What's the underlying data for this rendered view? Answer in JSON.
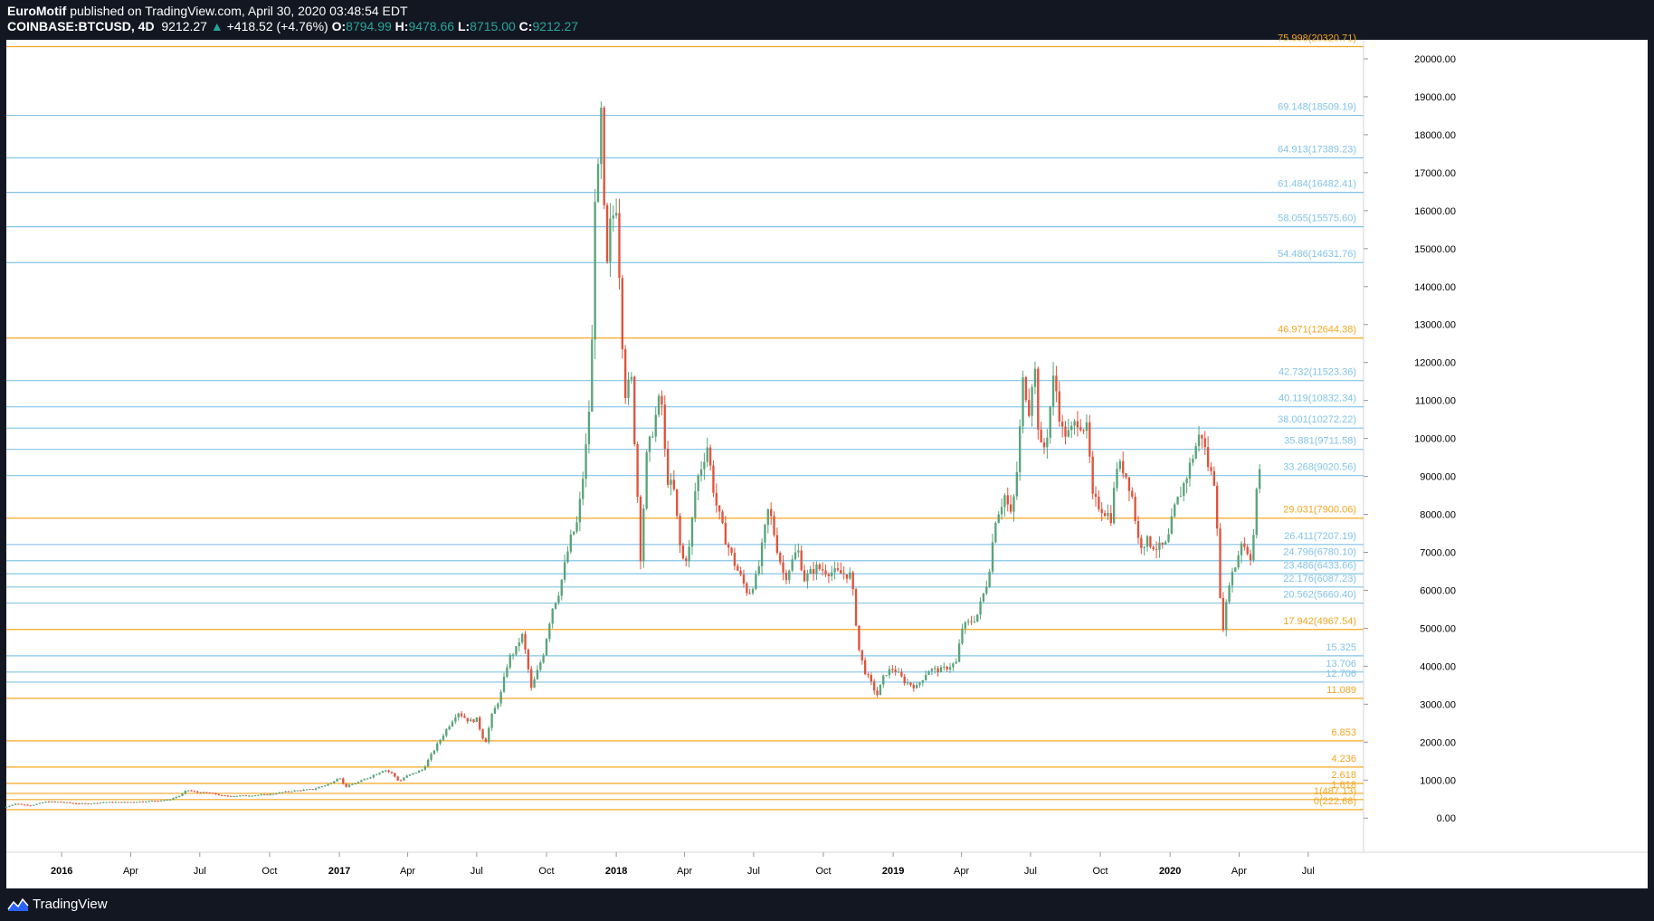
{
  "header": {
    "author": "EuroMotif",
    "published": "published on TradingView.com, April 30, 2020 03:48:54 EDT",
    "symbol": "COINBASE:BTCUSD, 4D",
    "last": "9212.27",
    "change": "+418.52 (+4.76%)",
    "o_label": "O:",
    "o_value": "8794.99",
    "h_label": "H:",
    "h_value": "9478.66",
    "l_label": "L:",
    "l_value": "8715.00",
    "c_label": "C:",
    "c_value": "9212.27"
  },
  "footer": {
    "brand": "TradingView"
  },
  "colors": {
    "background": "#131722",
    "up": "#26a69a",
    "candle_up": "#5aa37a",
    "candle_down": "#e0533c",
    "fib_orange": "#f5a623",
    "fib_blue": "#82c4e8",
    "axis_text": "#000000"
  },
  "chart_data": {
    "type": "candlestick",
    "title": "",
    "ylim": [
      -900,
      20500
    ],
    "y_ticks": [
      "0.00",
      "1000.00",
      "2000.00",
      "3000.00",
      "4000.00",
      "5000.00",
      "6000.00",
      "7000.00",
      "8000.00",
      "9000.00",
      "10000.00",
      "11000.00",
      "12000.00",
      "13000.00",
      "14000.00",
      "15000.00",
      "16000.00",
      "17000.00",
      "18000.00",
      "19000.00",
      "20000.00"
    ],
    "x_ticks": [
      {
        "label": "2016",
        "date": "2016-01-01",
        "bold": true
      },
      {
        "label": "Apr",
        "date": "2016-04-01",
        "bold": false
      },
      {
        "label": "Jul",
        "date": "2016-07-01",
        "bold": false
      },
      {
        "label": "Oct",
        "date": "2016-10-01",
        "bold": false
      },
      {
        "label": "2017",
        "date": "2017-01-01",
        "bold": true
      },
      {
        "label": "Apr",
        "date": "2017-04-01",
        "bold": false
      },
      {
        "label": "Jul",
        "date": "2017-07-01",
        "bold": false
      },
      {
        "label": "Oct",
        "date": "2017-10-01",
        "bold": false
      },
      {
        "label": "2018",
        "date": "2018-01-01",
        "bold": true
      },
      {
        "label": "Apr",
        "date": "2018-04-01",
        "bold": false
      },
      {
        "label": "Jul",
        "date": "2018-07-01",
        "bold": false
      },
      {
        "label": "Oct",
        "date": "2018-10-01",
        "bold": false
      },
      {
        "label": "2019",
        "date": "2019-01-01",
        "bold": true
      },
      {
        "label": "Apr",
        "date": "2019-04-01",
        "bold": false
      },
      {
        "label": "Jul",
        "date": "2019-07-01",
        "bold": false
      },
      {
        "label": "Oct",
        "date": "2019-10-01",
        "bold": false
      },
      {
        "label": "2020",
        "date": "2020-01-01",
        "bold": true
      },
      {
        "label": "Apr",
        "date": "2020-04-01",
        "bold": false
      },
      {
        "label": "Jul",
        "date": "2020-07-01",
        "bold": false
      }
    ],
    "xlim": [
      "2015-10-20",
      "2020-09-12"
    ],
    "fib_levels": [
      {
        "label": "75.998(20320.71)",
        "value": 20320.71,
        "color": "orange"
      },
      {
        "label": "69.148(18509.19)",
        "value": 18509.19,
        "color": "blue"
      },
      {
        "label": "64.913(17389.23)",
        "value": 17389.23,
        "color": "blue"
      },
      {
        "label": "61.484(16482.41)",
        "value": 16482.41,
        "color": "blue"
      },
      {
        "label": "58.055(15575.60)",
        "value": 15575.6,
        "color": "blue"
      },
      {
        "label": "54.486(14631.76)",
        "value": 14631.76,
        "color": "blue"
      },
      {
        "label": "46.971(12644.38)",
        "value": 12644.38,
        "color": "orange"
      },
      {
        "label": "42.732(11523.36)",
        "value": 11523.36,
        "color": "blue"
      },
      {
        "label": "40.119(10832.34)",
        "value": 10832.34,
        "color": "blue"
      },
      {
        "label": "38.001(10272.22)",
        "value": 10272.22,
        "color": "blue"
      },
      {
        "label": "35.881(9711.58)",
        "value": 9711.58,
        "color": "blue"
      },
      {
        "label": "33.268(9020.56)",
        "value": 9020.56,
        "color": "blue"
      },
      {
        "label": "29.031(7900.06)",
        "value": 7900.06,
        "color": "orange"
      },
      {
        "label": "26.411(7207.19)",
        "value": 7207.19,
        "color": "blue"
      },
      {
        "label": "24.796(6780.10)",
        "value": 6780.1,
        "color": "blue"
      },
      {
        "label": "23.486(6433.66)",
        "value": 6433.66,
        "color": "blue"
      },
      {
        "label": "22.176(6087.23)",
        "value": 6087.23,
        "color": "blue"
      },
      {
        "label": "20.562(5660.40)",
        "value": 5660.4,
        "color": "blue"
      },
      {
        "label": "17.942(4967.54)",
        "value": 4967.54,
        "color": "orange"
      },
      {
        "label": "15.325",
        "value": 4275,
        "color": "blue"
      },
      {
        "label": "13.706",
        "value": 3847,
        "color": "blue"
      },
      {
        "label": "12.706",
        "value": 3582,
        "color": "blue"
      },
      {
        "label": "11.089",
        "value": 3154,
        "color": "orange"
      },
      {
        "label": "6.853",
        "value": 2034,
        "color": "orange"
      },
      {
        "label": "4.236",
        "value": 1343,
        "color": "orange"
      },
      {
        "label": "2.618",
        "value": 915,
        "color": "orange"
      },
      {
        "label": "1.618",
        "value": 650,
        "color": "orange"
      },
      {
        "label": "1(487.13)",
        "value": 487.13,
        "color": "orange"
      },
      {
        "label": "0(222.68)",
        "value": 222.68,
        "color": "orange"
      }
    ],
    "price_series": [
      [
        "2015-10-20",
        270
      ],
      [
        "2015-11-05",
        380
      ],
      [
        "2015-11-25",
        330
      ],
      [
        "2015-12-15",
        430
      ],
      [
        "2016-01-01",
        430
      ],
      [
        "2016-01-20",
        390
      ],
      [
        "2016-02-10",
        380
      ],
      [
        "2016-03-01",
        420
      ],
      [
        "2016-04-01",
        420
      ],
      [
        "2016-05-01",
        450
      ],
      [
        "2016-05-25",
        480
      ],
      [
        "2016-06-10",
        600
      ],
      [
        "2016-06-18",
        740
      ],
      [
        "2016-07-01",
        680
      ],
      [
        "2016-07-20",
        660
      ],
      [
        "2016-08-05",
        580
      ],
      [
        "2016-09-01",
        590
      ],
      [
        "2016-10-01",
        615
      ],
      [
        "2016-11-01",
        710
      ],
      [
        "2016-12-01",
        760
      ],
      [
        "2016-12-25",
        920
      ],
      [
        "2017-01-05",
        1100
      ],
      [
        "2017-01-12",
        820
      ],
      [
        "2017-02-01",
        960
      ],
      [
        "2017-02-25",
        1190
      ],
      [
        "2017-03-05",
        1280
      ],
      [
        "2017-03-15",
        1180
      ],
      [
        "2017-03-25",
        960
      ],
      [
        "2017-04-01",
        1080
      ],
      [
        "2017-04-25",
        1280
      ],
      [
        "2017-05-10",
        1800
      ],
      [
        "2017-05-25",
        2300
      ],
      [
        "2017-06-10",
        2800
      ],
      [
        "2017-06-25",
        2550
      ],
      [
        "2017-07-05",
        2600
      ],
      [
        "2017-07-16",
        1950
      ],
      [
        "2017-07-25",
        2700
      ],
      [
        "2017-08-05",
        3200
      ],
      [
        "2017-08-16",
        4200
      ],
      [
        "2017-08-28",
        4500
      ],
      [
        "2017-09-02",
        4900
      ],
      [
        "2017-09-08",
        4300
      ],
      [
        "2017-09-15",
        3400
      ],
      [
        "2017-09-22",
        3800
      ],
      [
        "2017-10-01",
        4350
      ],
      [
        "2017-10-12",
        5500
      ],
      [
        "2017-10-22",
        6000
      ],
      [
        "2017-11-05",
        7300
      ],
      [
        "2017-11-15",
        7800
      ],
      [
        "2017-11-25",
        9500
      ],
      [
        "2017-12-03",
        11500
      ],
      [
        "2017-12-08",
        16500
      ],
      [
        "2017-12-13",
        17000
      ],
      [
        "2017-12-17",
        19000
      ],
      [
        "2017-12-22",
        13800
      ],
      [
        "2017-12-27",
        15500
      ],
      [
        "2018-01-05",
        16200
      ],
      [
        "2018-01-10",
        14000
      ],
      [
        "2018-01-16",
        11200
      ],
      [
        "2018-01-25",
        11500
      ],
      [
        "2018-02-02",
        8500
      ],
      [
        "2018-02-06",
        6900
      ],
      [
        "2018-02-14",
        9500
      ],
      [
        "2018-02-25",
        10500
      ],
      [
        "2018-03-05",
        11200
      ],
      [
        "2018-03-12",
        9000
      ],
      [
        "2018-03-22",
        8600
      ],
      [
        "2018-04-01",
        6800
      ],
      [
        "2018-04-10",
        6900
      ],
      [
        "2018-04-20",
        8800
      ],
      [
        "2018-05-05",
        9800
      ],
      [
        "2018-05-15",
        8400
      ],
      [
        "2018-05-28",
        7400
      ],
      [
        "2018-06-10",
        6700
      ],
      [
        "2018-06-28",
        5900
      ],
      [
        "2018-07-10",
        6400
      ],
      [
        "2018-07-25",
        8200
      ],
      [
        "2018-08-05",
        7100
      ],
      [
        "2018-08-15",
        6300
      ],
      [
        "2018-09-01",
        7100
      ],
      [
        "2018-09-10",
        6300
      ],
      [
        "2018-09-25",
        6600
      ],
      [
        "2018-10-10",
        6500
      ],
      [
        "2018-10-25",
        6450
      ],
      [
        "2018-11-10",
        6400
      ],
      [
        "2018-11-15",
        5600
      ],
      [
        "2018-11-20",
        4500
      ],
      [
        "2018-11-28",
        3900
      ],
      [
        "2018-12-08",
        3500
      ],
      [
        "2018-12-15",
        3250
      ],
      [
        "2018-12-25",
        3800
      ],
      [
        "2019-01-05",
        3950
      ],
      [
        "2019-01-20",
        3600
      ],
      [
        "2019-02-05",
        3450
      ],
      [
        "2019-02-20",
        3900
      ],
      [
        "2019-03-10",
        3900
      ],
      [
        "2019-03-30",
        4100
      ],
      [
        "2019-04-05",
        5000
      ],
      [
        "2019-04-25",
        5300
      ],
      [
        "2019-05-10",
        6300
      ],
      [
        "2019-05-20",
        7900
      ],
      [
        "2019-06-01",
        8500
      ],
      [
        "2019-06-10",
        7900
      ],
      [
        "2019-06-18",
        9300
      ],
      [
        "2019-06-26",
        11800
      ],
      [
        "2019-07-02",
        10600
      ],
      [
        "2019-07-10",
        12100
      ],
      [
        "2019-07-17",
        9700
      ],
      [
        "2019-07-25",
        9800
      ],
      [
        "2019-08-05",
        11700
      ],
      [
        "2019-08-15",
        10200
      ],
      [
        "2019-08-25",
        10100
      ],
      [
        "2019-09-05",
        10500
      ],
      [
        "2019-09-18",
        10200
      ],
      [
        "2019-09-25",
        8400
      ],
      [
        "2019-10-05",
        8200
      ],
      [
        "2019-10-20",
        7900
      ],
      [
        "2019-10-26",
        9300
      ],
      [
        "2019-11-05",
        9200
      ],
      [
        "2019-11-15",
        8600
      ],
      [
        "2019-11-25",
        7200
      ],
      [
        "2019-12-05",
        7300
      ],
      [
        "2019-12-20",
        7100
      ],
      [
        "2020-01-01",
        7200
      ],
      [
        "2020-01-10",
        8100
      ],
      [
        "2020-01-25",
        8900
      ],
      [
        "2020-02-08",
        9800
      ],
      [
        "2020-02-15",
        10200
      ],
      [
        "2020-02-25",
        9200
      ],
      [
        "2020-03-05",
        8800
      ],
      [
        "2020-03-12",
        5200
      ],
      [
        "2020-03-16",
        5000
      ],
      [
        "2020-03-22",
        6200
      ],
      [
        "2020-04-01",
        6700
      ],
      [
        "2020-04-08",
        7300
      ],
      [
        "2020-04-20",
        6900
      ],
      [
        "2020-04-25",
        7600
      ],
      [
        "2020-04-30",
        9212
      ]
    ]
  }
}
